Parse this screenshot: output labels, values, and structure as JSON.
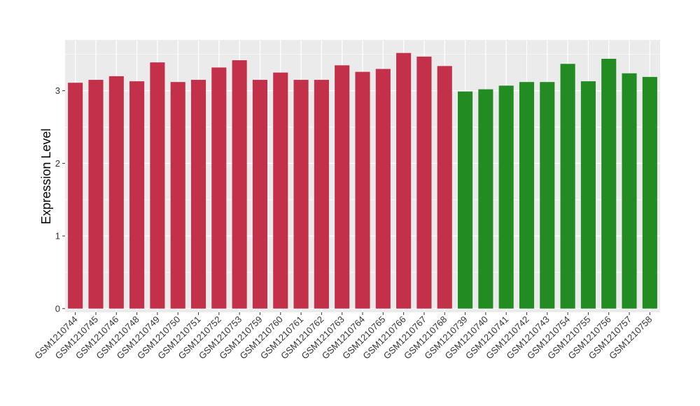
{
  "chart_data": {
    "type": "bar",
    "title": "",
    "xlabel": "",
    "ylabel": "Expression Level",
    "ylim": [
      -0.05,
      3.7
    ],
    "yticks": [
      0,
      1,
      2,
      3
    ],
    "grid": true,
    "legend": "none",
    "categories": [
      "GSM1210744",
      "GSM1210745",
      "GSM1210746",
      "GSM1210748",
      "GSM1210749",
      "GSM1210750",
      "GSM1210751",
      "GSM1210752",
      "GSM1210753",
      "GSM1210759",
      "GSM1210760",
      "GSM1210761",
      "GSM1210762",
      "GSM1210763",
      "GSM1210764",
      "GSM1210765",
      "GSM1210766",
      "GSM1210767",
      "GSM1210768",
      "GSM1210739",
      "GSM1210740",
      "GSM1210741",
      "GSM1210742",
      "GSM1210743",
      "GSM1210754",
      "GSM1210755",
      "GSM1210756",
      "GSM1210757",
      "GSM1210758"
    ],
    "values": [
      3.11,
      3.15,
      3.2,
      3.13,
      3.39,
      3.12,
      3.15,
      3.32,
      3.42,
      3.15,
      3.25,
      3.15,
      3.15,
      3.35,
      3.26,
      3.3,
      3.52,
      3.47,
      3.34,
      2.99,
      3.02,
      3.07,
      3.12,
      3.12,
      3.37,
      3.13,
      3.44,
      3.24,
      3.19
    ],
    "groups": [
      "a",
      "a",
      "a",
      "a",
      "a",
      "a",
      "a",
      "a",
      "a",
      "a",
      "a",
      "a",
      "a",
      "a",
      "a",
      "a",
      "a",
      "a",
      "a",
      "b",
      "b",
      "b",
      "b",
      "b",
      "b",
      "b",
      "b",
      "b",
      "b"
    ],
    "colors": {
      "a": "#c3304a",
      "b": "#228b22",
      "panel": "#ebebeb",
      "grid": "#ffffff"
    }
  }
}
